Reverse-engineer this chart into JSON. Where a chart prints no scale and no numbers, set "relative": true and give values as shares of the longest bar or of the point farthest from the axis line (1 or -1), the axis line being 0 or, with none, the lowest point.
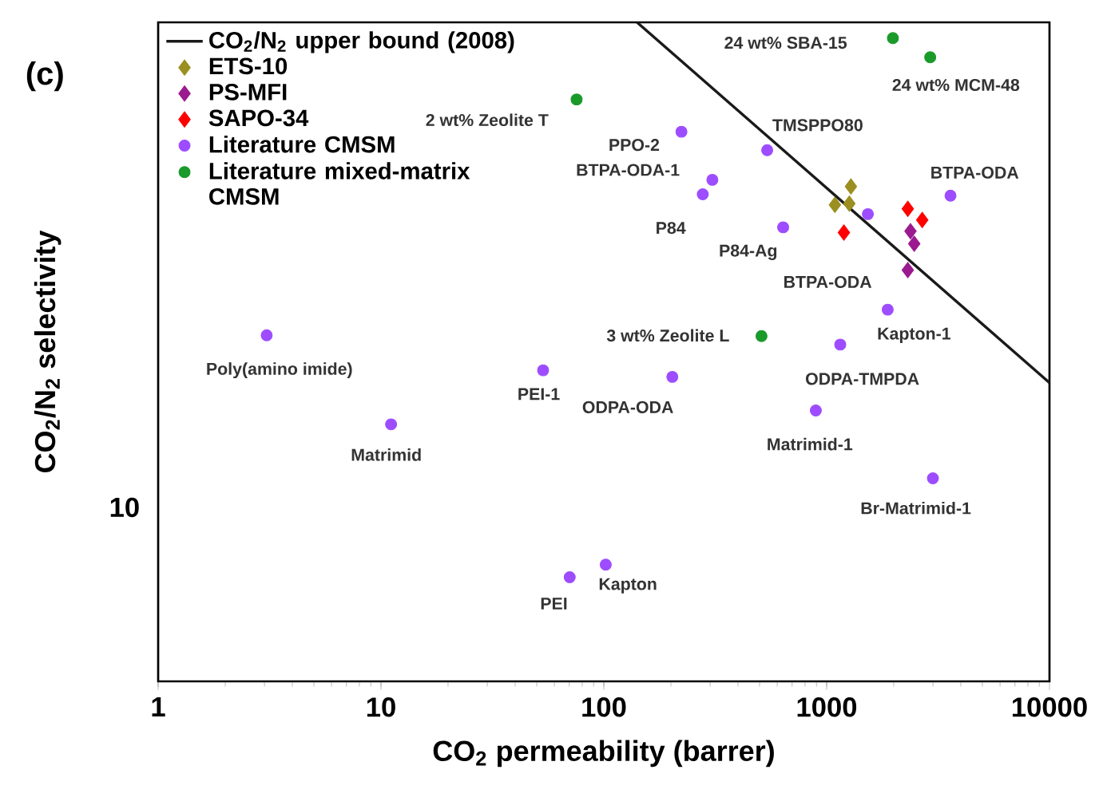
{
  "chart_data": {
    "type": "scatter",
    "xlabel": "CO$_{2}$ permeability (barrer)",
    "ylabel": "CO$_{2}$/N$_{2}$ selectivity",
    "log": "x",
    "legend": "top left",
    "relative": true,
    "xlim": [
      1,
      10000
    ],
    "xticks": [
      1,
      10,
      100,
      1000,
      10000
    ],
    "series": [
      {
        "name": "CO$_{2}$/N$_{2}$ upper bound (2008)",
        "type": "line",
        "color": "#1a1a1a",
        "marker": "none",
        "line_style": "solid",
        "x": [
          141,
          10000
        ],
        "values": [
          1.0,
          0.453
        ]
      },
      {
        "name": "ETS-10",
        "color": "#9a8f20",
        "marker": "diamond",
        "x": [
          1285,
          1089,
          1264
        ],
        "values": [
          0.751,
          0.723,
          0.725
        ]
      },
      {
        "name": "PS-MFI",
        "color": "#9b1a8f",
        "marker": "diamond",
        "x": [
          2378,
          2472,
          2313
        ],
        "values": [
          0.683,
          0.664,
          0.624
        ]
      },
      {
        "name": "SAPO-34",
        "color": "#ff0000",
        "marker": "diamond",
        "x": [
          2313,
          2685,
          1195
        ],
        "values": [
          0.717,
          0.7,
          0.681
        ]
      },
      {
        "name": "Literature CMSM",
        "color": "#9d4dff",
        "marker": "circle",
        "x": [
          3.07,
          11.1,
          53.4,
          70.3,
          102,
          203,
          894,
          2998,
          1151,
          1879,
          1531,
          3596,
          638,
          307,
          278,
          223,
          541
        ],
        "values": [
          0.525,
          0.39,
          0.472,
          0.158,
          0.177,
          0.462,
          0.411,
          0.308,
          0.511,
          0.564,
          0.709,
          0.737,
          0.689,
          0.761,
          0.739,
          0.834,
          0.806
        ]
      },
      {
        "name": "Literature mixed-matrix CMSM",
        "color": "#1a9a2a",
        "marker": "circle",
        "x": [
          75.5,
          1983,
          2916,
          510
        ],
        "values": [
          0.883,
          0.976,
          0.947,
          0.524
        ]
      }
    ],
    "annotations": [
      "(c)",
      "2 wt% Zeolite T",
      "PPO-2",
      "BTPA-ODA-1",
      "P84",
      "P84-Ag",
      "TMSPPO80",
      "BTPA-ODA",
      "BTPA-ODA",
      "24 wt% SBA-15",
      "24 wt% MCM-48",
      "3 wt% Zeolite L",
      "Kapton-1",
      "ODPA-TMPDA",
      "ODPA-ODA",
      "PEI-1",
      "Poly(amino imide)",
      "Matrimid",
      "Matrimid-1",
      "Br-Matrimid-1",
      "PEI",
      "Kapton",
      "10"
    ]
  }
}
